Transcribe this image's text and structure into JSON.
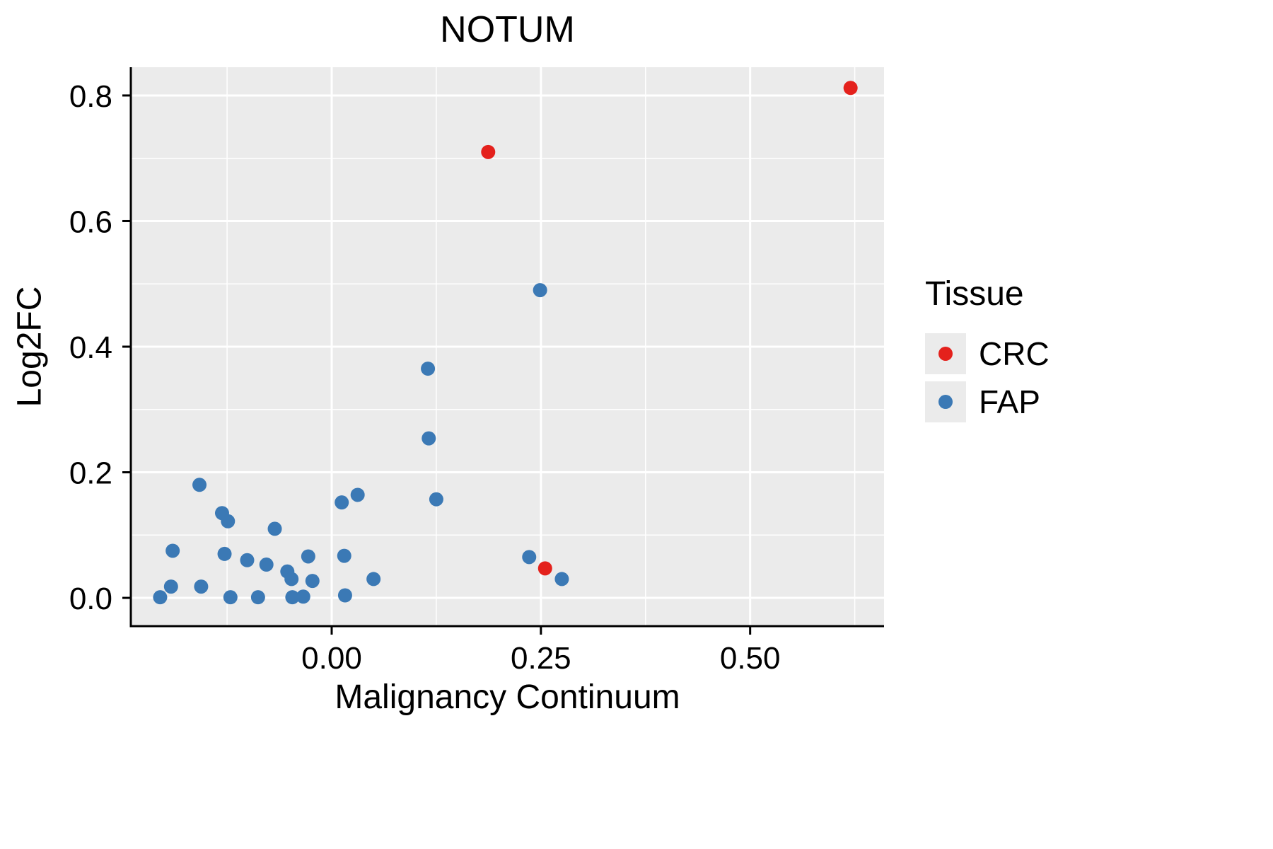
{
  "chart_data": {
    "type": "scatter",
    "title": "NOTUM",
    "xlabel": "Malignancy Continuum",
    "ylabel": "Log2FC",
    "xlim": [
      -0.24,
      0.66
    ],
    "ylim": [
      -0.045,
      0.845
    ],
    "grid": true,
    "x_major_ticks": [
      0.0,
      0.25,
      0.5
    ],
    "x_tick_labels": [
      "0.00",
      "0.25",
      "0.50"
    ],
    "x_minor_ticks": [
      -0.125,
      0.125,
      0.375,
      0.625
    ],
    "y_major_ticks": [
      0.0,
      0.2,
      0.4,
      0.6,
      0.8
    ],
    "y_tick_labels": [
      "0.0",
      "0.2",
      "0.4",
      "0.6",
      "0.8"
    ],
    "y_minor_ticks": [
      0.1,
      0.3,
      0.5,
      0.7
    ],
    "colors": {
      "panel_background": "#ebebeb",
      "gridline": "#ffffff",
      "axis": "#000000",
      "crc": "#e4211c",
      "fap": "#3b79b5"
    },
    "legend": {
      "title": "Tissue",
      "position": "right"
    },
    "series": [
      {
        "name": "CRC",
        "color": "#e4211c",
        "points": [
          [
            0.187,
            0.71
          ],
          [
            0.255,
            0.047
          ],
          [
            0.62,
            0.812
          ]
        ]
      },
      {
        "name": "FAP",
        "color": "#3b79b5",
        "points": [
          [
            -0.205,
            0.001
          ],
          [
            -0.19,
            0.075
          ],
          [
            -0.192,
            0.018
          ],
          [
            -0.158,
            0.18
          ],
          [
            -0.156,
            0.018
          ],
          [
            -0.131,
            0.135
          ],
          [
            -0.124,
            0.122
          ],
          [
            -0.128,
            0.07
          ],
          [
            -0.121,
            0.001
          ],
          [
            -0.101,
            0.06
          ],
          [
            -0.088,
            0.001
          ],
          [
            -0.078,
            0.053
          ],
          [
            -0.068,
            0.11
          ],
          [
            -0.053,
            0.042
          ],
          [
            -0.048,
            0.03
          ],
          [
            -0.047,
            0.001
          ],
          [
            -0.034,
            0.002
          ],
          [
            -0.028,
            0.066
          ],
          [
            -0.023,
            0.027
          ],
          [
            0.012,
            0.152
          ],
          [
            0.015,
            0.067
          ],
          [
            0.016,
            0.004
          ],
          [
            0.031,
            0.164
          ],
          [
            0.05,
            0.03
          ],
          [
            0.115,
            0.365
          ],
          [
            0.116,
            0.254
          ],
          [
            0.125,
            0.157
          ],
          [
            0.249,
            0.49
          ],
          [
            0.236,
            0.065
          ],
          [
            0.275,
            0.03
          ]
        ]
      }
    ]
  }
}
